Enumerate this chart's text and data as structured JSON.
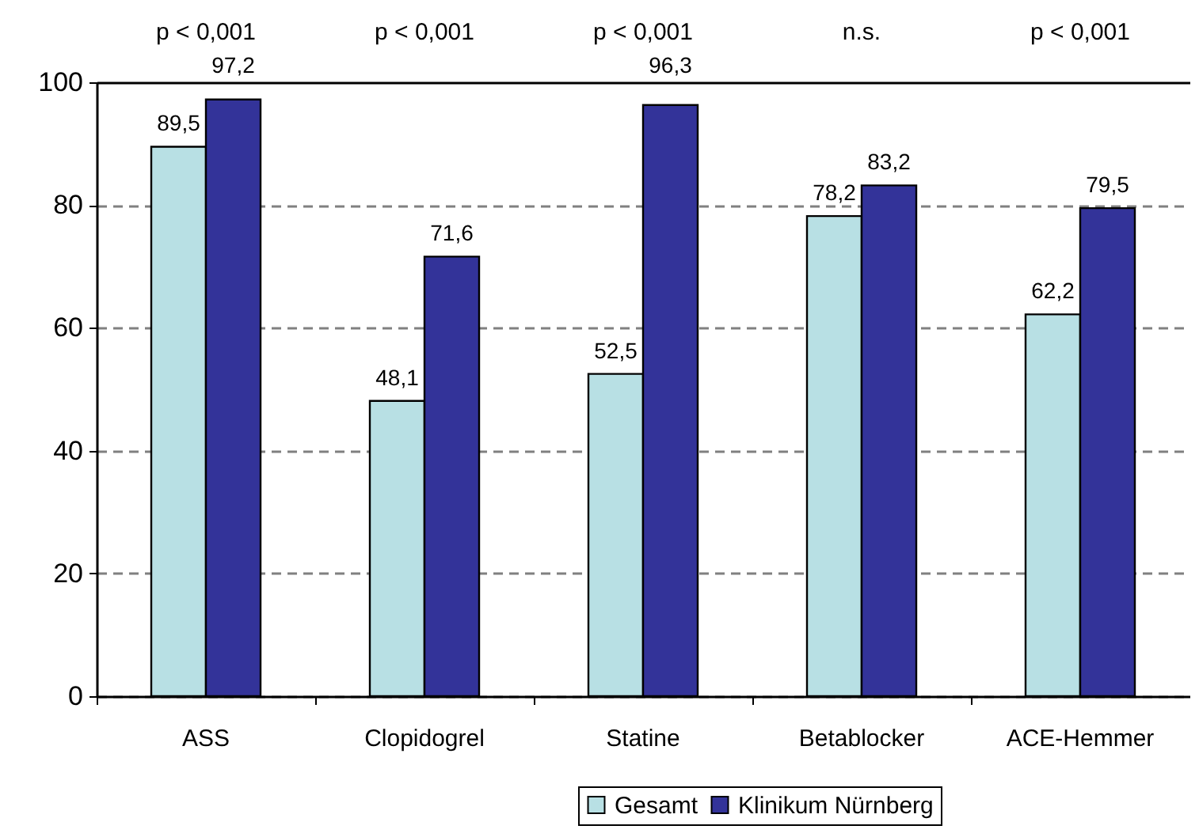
{
  "chart_data": {
    "type": "bar",
    "categories": [
      "ASS",
      "Clopidogrel",
      "Statine",
      "Betablocker",
      "ACE-Hemmer"
    ],
    "series": [
      {
        "name": "Gesamt",
        "color": "#b8e0e4",
        "values": [
          89.5,
          48.1,
          52.5,
          78.2,
          62.2
        ],
        "value_labels": [
          "89,5",
          "48,1",
          "52,5",
          "78,2",
          "62,2"
        ]
      },
      {
        "name": "Klinikum Nürnberg",
        "color": "#333399",
        "values": [
          97.2,
          71.6,
          96.3,
          83.2,
          79.5
        ],
        "value_labels": [
          "97,2",
          "71,6",
          "96,3",
          "83,2",
          "79,5"
        ]
      }
    ],
    "ylim": [
      0,
      100
    ],
    "yticks": [
      0,
      20,
      40,
      60,
      80,
      100
    ],
    "grid": "y",
    "legend": "bottom",
    "annotations": [
      "p < 0,001",
      "p < 0,001",
      "p < 0,001",
      "n.s.",
      "p < 0,001"
    ]
  }
}
